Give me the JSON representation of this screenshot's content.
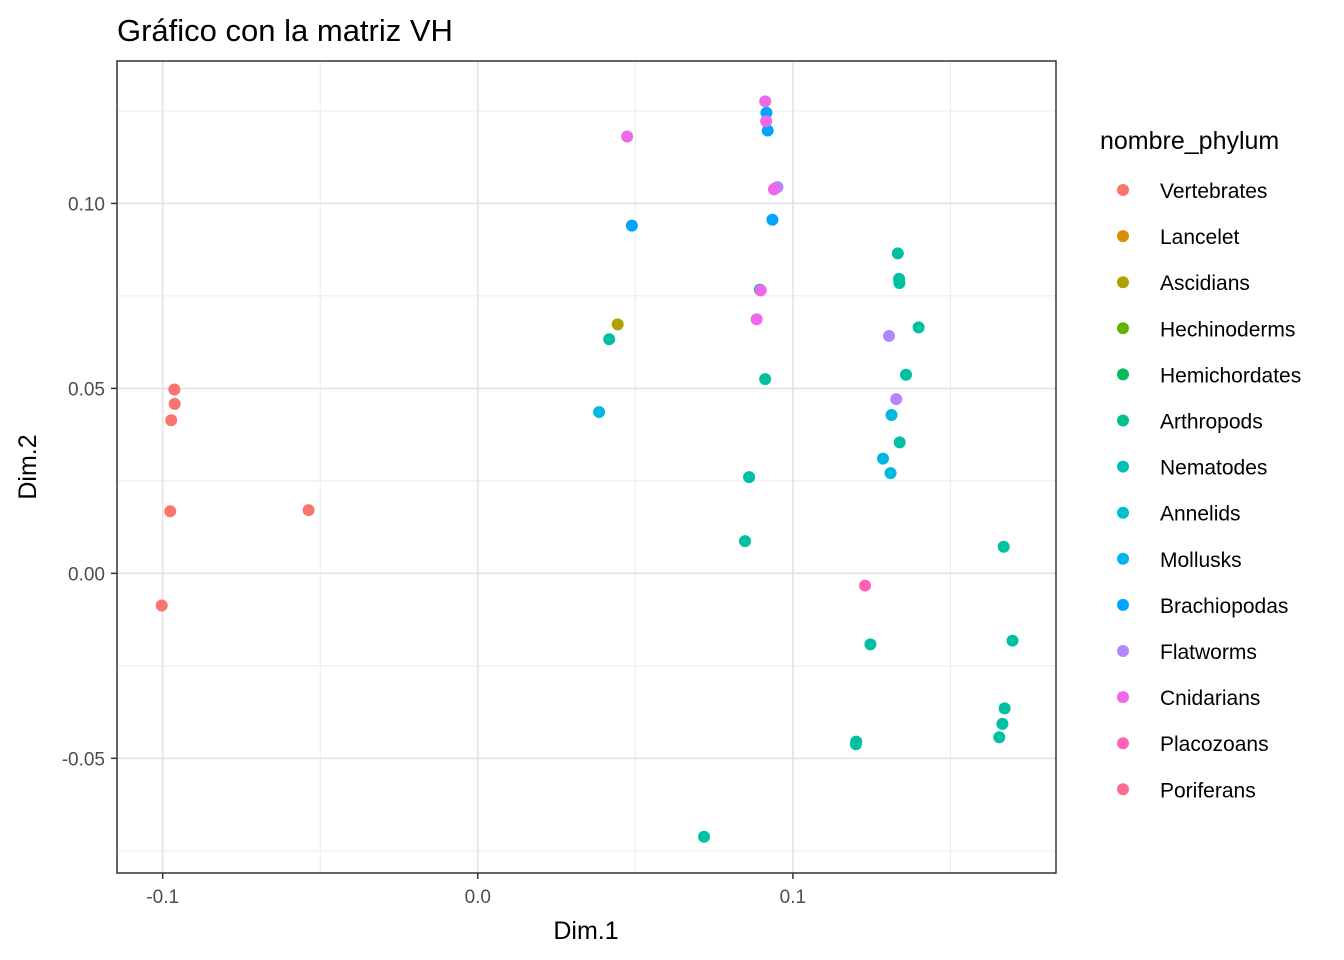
{
  "chart_data": {
    "type": "scatter",
    "title": "Gráfico con la matriz VH",
    "xlabel": "Dim.1",
    "ylabel": "Dim.2",
    "xlim": [
      -0.1145,
      0.1835
    ],
    "ylim": [
      -0.081,
      0.1385
    ],
    "x_ticks": [
      -0.1,
      0.0,
      0.1
    ],
    "x_tick_labels": [
      "-0.1",
      "0.0",
      "0.1"
    ],
    "y_ticks": [
      -0.05,
      0.0,
      0.05,
      0.1
    ],
    "y_tick_labels": [
      "-0.05",
      "0.00",
      "0.05",
      "0.10"
    ],
    "grid": true,
    "legend": {
      "title": "nombre_phylum",
      "position": "right"
    },
    "series": [
      {
        "name": "Vertebrates",
        "color": "#F8766D",
        "points": [
          [
            -0.1003,
            -0.0087
          ],
          [
            -0.0963,
            0.0497
          ],
          [
            -0.0962,
            0.0458
          ],
          [
            -0.0973,
            0.0414
          ],
          [
            -0.0976,
            0.0168
          ],
          [
            -0.0537,
            0.0171
          ]
        ]
      },
      {
        "name": "Lancelet",
        "color": "#DB8E00",
        "points": []
      },
      {
        "name": "Ascidians",
        "color": "#AEA200",
        "points": [
          [
            0.0444,
            0.0673
          ]
        ]
      },
      {
        "name": "Hechinoderms",
        "color": "#64B200",
        "points": []
      },
      {
        "name": "Hemichordates",
        "color": "#00BD5C",
        "points": []
      },
      {
        "name": "Arthropods",
        "color": "#00C0A2",
        "points": [
          [
            0.0417,
            0.0633
          ],
          [
            0.0718,
            -0.0712
          ],
          [
            0.0848,
            0.0087
          ],
          [
            0.0861,
            0.026
          ],
          [
            0.0895,
            0.0767
          ],
          [
            0.0912,
            0.0525
          ],
          [
            0.1201,
            -0.0455
          ],
          [
            0.12,
            -0.0462
          ],
          [
            0.1246,
            -0.0192
          ],
          [
            0.1333,
            0.0865
          ],
          [
            0.1337,
            0.0796
          ],
          [
            0.1338,
            0.0785
          ],
          [
            0.1339,
            0.0354
          ],
          [
            0.1359,
            0.0537
          ],
          [
            0.1399,
            0.0665
          ],
          [
            0.1669,
            0.0072
          ],
          [
            0.1697,
            -0.0182
          ],
          [
            0.1672,
            -0.0365
          ],
          [
            0.1665,
            -0.0407
          ],
          [
            0.1655,
            -0.0443
          ]
        ]
      },
      {
        "name": "Nematodes",
        "color": "#00BADE",
        "points": [
          [
            0.0385,
            0.0436
          ],
          [
            0.1286,
            0.031
          ],
          [
            0.131,
            0.0271
          ],
          [
            0.1313,
            0.0428
          ]
        ]
      },
      {
        "name": "Annelids",
        "color": "#00BADE",
        "points": []
      },
      {
        "name": "Mollusks",
        "color": "#00A5FF",
        "points": [
          [
            0.0489,
            0.094
          ],
          [
            0.0916,
            0.1245
          ],
          [
            0.092,
            0.1197
          ],
          [
            0.0935,
            0.0956
          ]
        ]
      },
      {
        "name": "Brachiopodas",
        "color": "#00A5FF",
        "points": []
      },
      {
        "name": "Flatworms",
        "color": "#B385FF",
        "points": [
          [
            0.0951,
            0.1044
          ],
          [
            0.0944,
            0.1041
          ],
          [
            0.1305,
            0.0642
          ],
          [
            0.1328,
            0.0471
          ]
        ]
      },
      {
        "name": "Cnidarians",
        "color": "#EF67EB",
        "points": [
          [
            0.0474,
            0.1181
          ],
          [
            0.0885,
            0.0687
          ],
          [
            0.0898,
            0.0765
          ],
          [
            0.0912,
            0.1276
          ],
          [
            0.0915,
            0.1222
          ],
          [
            0.094,
            0.1038
          ]
        ]
      },
      {
        "name": "Placozoans",
        "color": "#FF63B6",
        "points": []
      },
      {
        "name": "Poriferans",
        "color": "#FF63B6",
        "points": [
          [
            0.1229,
            -0.0033
          ]
        ]
      }
    ],
    "legend_colors": [
      "#F8766D",
      "#DB8E00",
      "#AEA200",
      "#64B200",
      "#00BD5C",
      "#00C08B",
      "#00C0AF",
      "#00BDD0",
      "#00B5EE",
      "#00A5FF",
      "#B385FF",
      "#EF67EB",
      "#FF63B6",
      "#FF6C91"
    ]
  }
}
